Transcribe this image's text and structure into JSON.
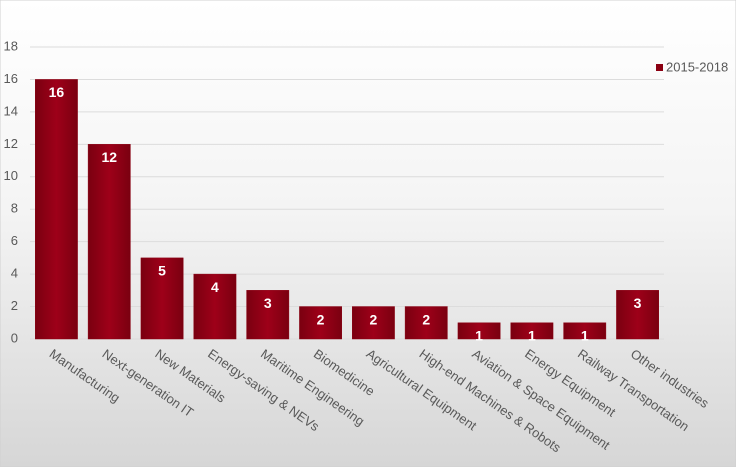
{
  "chart_data": {
    "type": "bar",
    "categories": [
      "Manufacturing",
      "Next-generation IT",
      "New Materials",
      "Energy-saving & NEVs",
      "Maritime Engineering",
      "Biomedicine",
      "Agricultural Equipment",
      "High-end Machines & Robots",
      "Aviation & Space Equipment",
      "Energy Equipment",
      "Railway Transportation",
      "Other industries"
    ],
    "series": [
      {
        "name": "2015-2018",
        "color": "#8b0012",
        "values": [
          16,
          12,
          5,
          4,
          3,
          2,
          2,
          2,
          1,
          1,
          1,
          3
        ]
      }
    ],
    "ylim": [
      0,
      18
    ],
    "yticks": [
      0,
      2,
      4,
      6,
      8,
      10,
      12,
      14,
      16,
      18
    ],
    "grid": true,
    "legend": "top-right"
  }
}
